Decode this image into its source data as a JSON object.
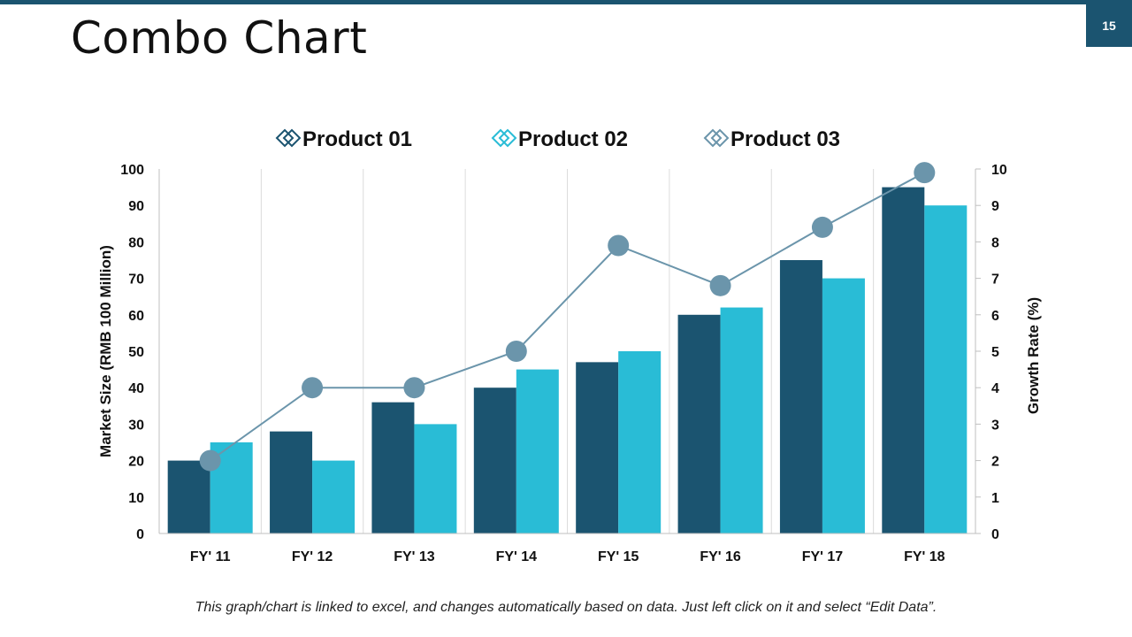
{
  "page": {
    "title": "Combo Chart",
    "slide_number": "15",
    "footnote": "This graph/chart is linked to excel, and changes automatically based on data. Just left click on it and select “Edit Data”."
  },
  "colors": {
    "accent": "#1b5470",
    "product_01": "#1b5470",
    "product_02": "#29bcd6",
    "product_03": "#6b95ab"
  },
  "chart_data": {
    "type": "combo",
    "categories": [
      "FY' 11",
      "FY' 12",
      "FY' 13",
      "FY' 14",
      "FY' 15",
      "FY' 16",
      "FY' 17",
      "FY' 18"
    ],
    "series": [
      {
        "name": "Product 01",
        "type": "bar",
        "axis": "left",
        "values": [
          20,
          28,
          36,
          40,
          47,
          60,
          75,
          95
        ]
      },
      {
        "name": "Product 02",
        "type": "bar",
        "axis": "left",
        "values": [
          25,
          20,
          30,
          45,
          50,
          62,
          70,
          90
        ]
      },
      {
        "name": "Product 03",
        "type": "line",
        "axis": "right",
        "values": [
          2,
          4,
          4,
          5,
          7.9,
          6.8,
          8.4,
          9.9
        ]
      }
    ],
    "ylabel": "Market Size (RMB 100 Million)",
    "y2label": "Growth Rate (%)",
    "ylim": [
      0,
      100
    ],
    "y2lim": [
      0,
      10
    ],
    "yticks": [
      0,
      10,
      20,
      30,
      40,
      50,
      60,
      70,
      80,
      90,
      100
    ],
    "y2ticks": [
      0,
      1,
      2,
      3,
      4,
      5,
      6,
      7,
      8,
      9,
      10
    ],
    "legend_position": "top",
    "grid": "vertical category separators"
  }
}
